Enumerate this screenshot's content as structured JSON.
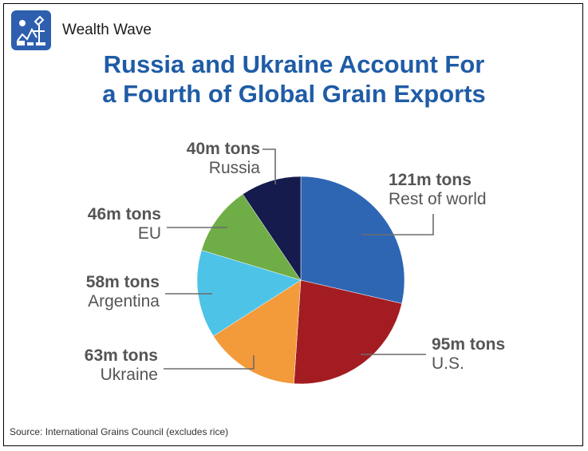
{
  "header": {
    "brand_name": "Wealth Wave",
    "logo_icon": "wealth-wave-logo-icon",
    "title_line1": "Russia and Ukraine Account For",
    "title_line2": "a Fourth of Global Grain Exports"
  },
  "footer": {
    "source": "Source: International Grains Council (excludes rice)"
  },
  "chart_data": {
    "type": "pie",
    "title": "Russia and Ukraine Account For a Fourth of Global Grain Exports",
    "unit": "m tons",
    "start_angle_deg": 0,
    "direction": "clockwise",
    "slices": [
      {
        "label": "Rest of world",
        "value": 121,
        "value_label": "121m tons",
        "color": "#2e66b4"
      },
      {
        "label": "U.S.",
        "value": 95,
        "value_label": "95m tons",
        "color": "#a31c22"
      },
      {
        "label": "Ukraine",
        "value": 63,
        "value_label": "63m tons",
        "color": "#f39a3a"
      },
      {
        "label": "Argentina",
        "value": 58,
        "value_label": "58m tons",
        "color": "#4ec3e8"
      },
      {
        "label": "EU",
        "value": 46,
        "value_label": "46m tons",
        "color": "#6fad46"
      },
      {
        "label": "Russia",
        "value": 40,
        "value_label": "40m tons",
        "color": "#151b4d"
      }
    ]
  }
}
